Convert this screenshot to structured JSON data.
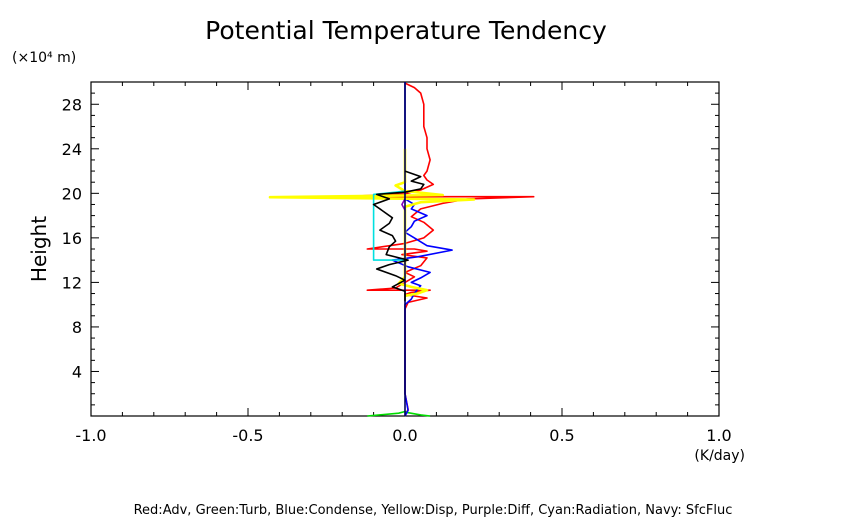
{
  "chart_data": {
    "type": "line",
    "title": "Potential Temperature Tendency",
    "y_unit": "(×10⁴ m)",
    "ylabel": "Height",
    "x_unit": "(K/day)",
    "xlim": [
      -1.0,
      1.0
    ],
    "ylim": [
      0,
      30
    ],
    "x_ticks": [
      "-1.0",
      "-0.5",
      "0.0",
      "0.5",
      "1.0"
    ],
    "x_tick_values": [
      -1.0,
      -0.5,
      0.0,
      0.5,
      1.0
    ],
    "y_ticks": [
      "4",
      "8",
      "12",
      "16",
      "20",
      "24",
      "28"
    ],
    "y_tick_values": [
      4,
      8,
      12,
      16,
      20,
      24,
      28
    ],
    "legend_text": "Red:Adv, Green:Turb, Blue:Condense, Yellow:Disp, Purple:Diff, Cyan:Radiation, Navy: SfcFluc",
    "series": [
      {
        "name": "Adv",
        "color": "#ff0000",
        "points": [
          [
            0.0,
            0.0
          ],
          [
            0.01,
            0.6
          ],
          [
            0.0,
            2.0
          ],
          [
            0.0,
            4.0
          ],
          [
            0.0,
            6.0
          ],
          [
            0.0,
            8.0
          ],
          [
            0.0,
            9.6
          ],
          [
            0.01,
            10.2
          ],
          [
            0.07,
            10.6
          ],
          [
            0.0,
            10.9
          ],
          [
            0.02,
            11.1
          ],
          [
            0.08,
            11.3
          ],
          [
            -0.12,
            11.3
          ],
          [
            -0.03,
            11.5
          ],
          [
            0.0,
            12.0
          ],
          [
            0.03,
            12.5
          ],
          [
            0.0,
            12.9
          ],
          [
            0.05,
            13.5
          ],
          [
            0.07,
            14.2
          ],
          [
            -0.01,
            14.5
          ],
          [
            0.07,
            14.8
          ],
          [
            0.03,
            15.0
          ],
          [
            -0.12,
            15.0
          ],
          [
            0.0,
            15.5
          ],
          [
            0.06,
            16.0
          ],
          [
            0.09,
            16.7
          ],
          [
            0.06,
            17.4
          ],
          [
            0.02,
            17.9
          ],
          [
            0.05,
            18.6
          ],
          [
            0.12,
            19.1
          ],
          [
            0.2,
            19.5
          ],
          [
            0.41,
            19.7
          ],
          [
            -0.2,
            19.7
          ],
          [
            0.0,
            19.95
          ],
          [
            0.05,
            20.3
          ],
          [
            0.09,
            20.8
          ],
          [
            0.07,
            21.2
          ],
          [
            0.06,
            21.6
          ],
          [
            0.07,
            22.0
          ],
          [
            0.08,
            23.0
          ],
          [
            0.07,
            24.0
          ],
          [
            0.07,
            25.0
          ],
          [
            0.06,
            26.0
          ],
          [
            0.06,
            27.0
          ],
          [
            0.06,
            28.0
          ],
          [
            0.05,
            29.0
          ],
          [
            0.03,
            29.5
          ],
          [
            0.0,
            29.9
          ]
        ]
      },
      {
        "name": "Turb",
        "color": "#00dd00",
        "points": [
          [
            -0.12,
            0.0
          ],
          [
            -0.02,
            0.25
          ],
          [
            0.0,
            0.4
          ],
          [
            0.01,
            0.3
          ],
          [
            0.05,
            0.1
          ],
          [
            0.08,
            0.0
          ]
        ]
      },
      {
        "name": "Condense",
        "color": "#0000ff",
        "points": [
          [
            0.0,
            0.0
          ],
          [
            0.01,
            0.5
          ],
          [
            0.0,
            2.0
          ],
          [
            0.0,
            10.0
          ],
          [
            0.02,
            10.5
          ],
          [
            0.03,
            11.0
          ],
          [
            0.04,
            11.4
          ],
          [
            0.05,
            11.7
          ],
          [
            0.02,
            12.0
          ],
          [
            0.05,
            12.4
          ],
          [
            0.08,
            12.9
          ],
          [
            0.01,
            13.4
          ],
          [
            -0.04,
            14.0
          ],
          [
            0.04,
            14.3
          ],
          [
            0.15,
            14.9
          ],
          [
            0.07,
            15.3
          ],
          [
            0.03,
            16.0
          ],
          [
            0.0,
            16.5
          ],
          [
            0.02,
            17.0
          ],
          [
            0.03,
            17.5
          ],
          [
            0.07,
            18.0
          ],
          [
            0.02,
            18.6
          ],
          [
            0.03,
            19.0
          ],
          [
            0.0,
            19.5
          ],
          [
            0.0,
            30.0
          ]
        ]
      },
      {
        "name": "Disp",
        "color": "#ffff00",
        "points": [
          [
            0.0,
            10.8
          ],
          [
            0.04,
            11.0
          ],
          [
            0.07,
            11.3
          ],
          [
            0.02,
            11.6
          ],
          [
            -0.02,
            11.9
          ],
          [
            0.0,
            12.5
          ],
          [
            0.0,
            18.8
          ],
          [
            0.05,
            19.2
          ],
          [
            0.22,
            19.45
          ],
          [
            -0.43,
            19.65
          ],
          [
            0.12,
            19.85
          ],
          [
            0.0,
            20.2
          ],
          [
            -0.03,
            20.7
          ],
          [
            0.0,
            21.0
          ],
          [
            0.0,
            24.0
          ]
        ]
      },
      {
        "name": "Diff",
        "color": "#8000c0",
        "points": [
          [
            0.0,
            18.5
          ],
          [
            -0.01,
            19.0
          ],
          [
            0.0,
            19.5
          ]
        ]
      },
      {
        "name": "Radiation",
        "color": "#00e0e0",
        "points": [
          [
            0.0,
            14.0
          ],
          [
            -0.1,
            14.0
          ],
          [
            -0.1,
            16.0
          ],
          [
            -0.1,
            18.0
          ],
          [
            -0.1,
            19.9
          ],
          [
            -0.03,
            20.1
          ],
          [
            0.0,
            20.2
          ]
        ]
      },
      {
        "name": "SfcFluc",
        "color": "#000060",
        "points": [
          [
            0.0,
            0.0
          ],
          [
            0.0,
            30.0
          ]
        ]
      },
      {
        "color": "#000000",
        "points": [
          [
            0.0,
            10.3
          ],
          [
            0.0,
            11.2
          ],
          [
            -0.04,
            11.6
          ],
          [
            0.0,
            12.2
          ],
          [
            -0.03,
            12.6
          ],
          [
            -0.09,
            13.2
          ],
          [
            -0.05,
            13.6
          ],
          [
            0.01,
            14.0
          ],
          [
            -0.06,
            14.5
          ],
          [
            -0.05,
            15.2
          ],
          [
            -0.03,
            15.7
          ],
          [
            -0.04,
            16.2
          ],
          [
            -0.08,
            16.7
          ],
          [
            -0.05,
            17.3
          ],
          [
            -0.04,
            17.8
          ],
          [
            -0.07,
            18.4
          ],
          [
            -0.1,
            19.0
          ],
          [
            -0.05,
            19.5
          ],
          [
            -0.09,
            19.9
          ],
          [
            0.0,
            20.1
          ],
          [
            0.05,
            20.4
          ],
          [
            0.06,
            20.8
          ],
          [
            0.02,
            21.1
          ],
          [
            0.05,
            21.5
          ],
          [
            0.0,
            22.0
          ]
        ]
      }
    ]
  }
}
